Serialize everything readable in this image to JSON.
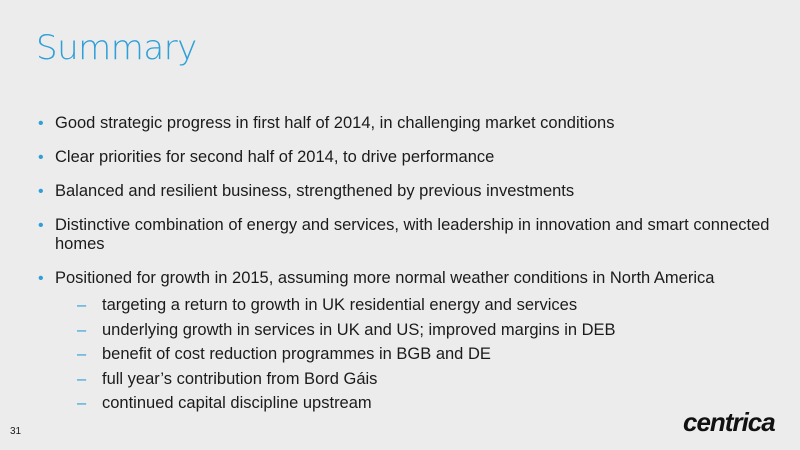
{
  "title": "Summary",
  "bullets": [
    "Good strategic progress in first half of 2014, in challenging market conditions",
    "Clear priorities for second half of 2014, to drive performance",
    "Balanced and resilient business, strengthened by previous investments",
    "Distinctive combination of energy and services, with leadership in innovation and smart connected homes",
    "Positioned for growth in 2015, assuming more normal weather conditions in North America"
  ],
  "sub_bullets": [
    "targeting a return to growth in UK residential energy and services",
    "underlying growth in services in UK and US; improved margins in DEB",
    "benefit of cost reduction programmes in BGB and DE",
    "full year’s contribution from Bord Gáis",
    "continued capital discipline upstream"
  ],
  "bullet_symbol": "•",
  "sub_bullet_symbol": "–",
  "page_number": "31",
  "logo_text": "centrica",
  "colors": {
    "accent": "#2f9fd8",
    "text": "#1b1b1b",
    "background": "#ececec"
  }
}
